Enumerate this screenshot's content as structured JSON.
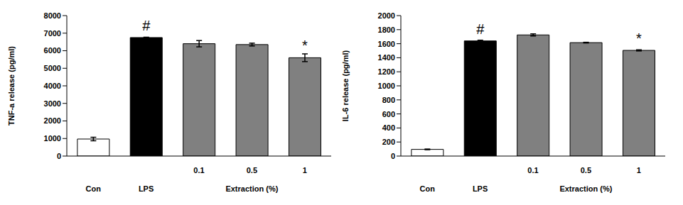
{
  "chart_data": [
    {
      "type": "bar",
      "y_label": "TNF-a release (pg/ml)",
      "categories": [
        "Con",
        "LPS",
        "0.1",
        "0.5",
        "1"
      ],
      "x_group": {
        "label": "Extraction (%)",
        "categories": [
          "0.1",
          "0.5",
          "1"
        ]
      },
      "values": [
        970,
        6750,
        6400,
        6350,
        5600
      ],
      "errors": [
        100,
        20,
        180,
        80,
        220
      ],
      "annotations": [
        {
          "category": "LPS",
          "text": "#"
        },
        {
          "category": "1",
          "text": "*"
        }
      ],
      "colors": [
        "#ffffff",
        "#000000",
        "#808080",
        "#808080",
        "#808080"
      ],
      "ylim": [
        0,
        8000
      ],
      "yticks": [
        0,
        1000,
        2000,
        3000,
        4000,
        5000,
        6000,
        7000,
        8000
      ],
      "grid": false
    },
    {
      "type": "bar",
      "y_label": "IL-6 release (pg/ml)",
      "categories": [
        "Con",
        "LPS",
        "0.1",
        "0.5",
        "1"
      ],
      "x_group": {
        "label": "Extraction (%)",
        "categories": [
          "0.1",
          "0.5",
          "1"
        ]
      },
      "values": [
        95,
        1640,
        1725,
        1615,
        1505
      ],
      "errors": [
        5,
        10,
        15,
        5,
        8
      ],
      "annotations": [
        {
          "category": "LPS",
          "text": "#"
        },
        {
          "category": "1",
          "text": "*"
        }
      ],
      "colors": [
        "#ffffff",
        "#000000",
        "#808080",
        "#808080",
        "#808080"
      ],
      "ylim": [
        0,
        2000
      ],
      "yticks": [
        0,
        200,
        400,
        600,
        800,
        1000,
        1200,
        1400,
        1600,
        1800,
        2000
      ],
      "grid": false
    }
  ]
}
